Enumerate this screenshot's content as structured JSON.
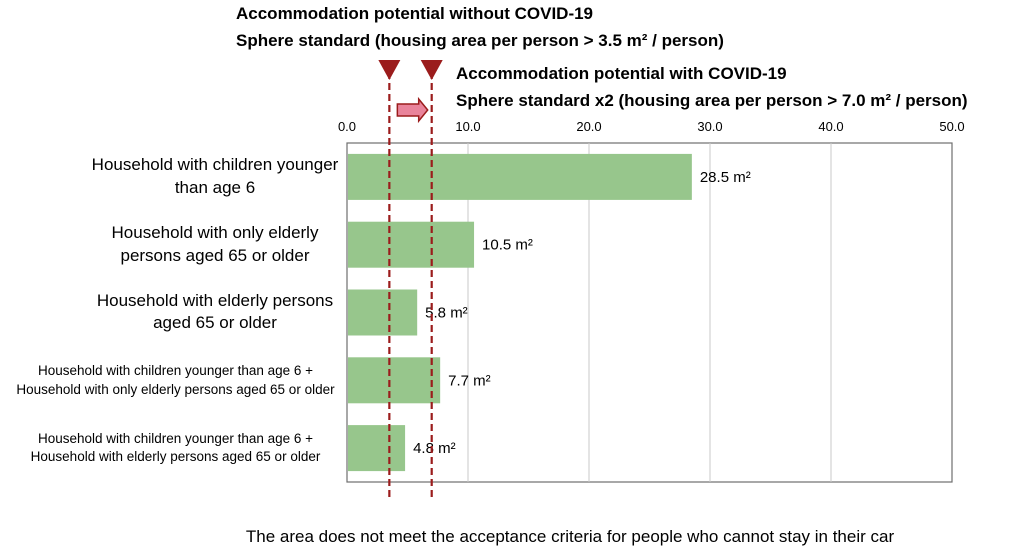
{
  "annotations": {
    "without_line1": "Accommodation potential without COVID-19",
    "without_line2": "Sphere standard (housing area per person > 3.5 m² / person)",
    "with_line1": "Accommodation potential with COVID-19",
    "with_line2": "Sphere standard x2 (housing area per person > 7.0 m² / person)"
  },
  "footer": "The area does not meet the acceptance criteria for people who cannot stay in their car",
  "colors": {
    "bar": "#97c68c",
    "threshold": "#9b1c1c",
    "arrow_fill": "#e9849b",
    "arrow_stroke": "#9b1c1c",
    "grid": "#c8c8c8",
    "frame": "#6e6e6e"
  },
  "chart_data": {
    "type": "bar",
    "orientation": "horizontal",
    "categories": [
      "Household with children younger than age 6",
      "Household with only elderly persons aged 65 or older",
      "Household with elderly persons aged 65 or older",
      "Household with children younger than age 6 + Household with only elderly persons aged 65 or older",
      "Household with children younger than age 6 + Household with elderly persons aged 65 or older"
    ],
    "values": [
      28.5,
      10.5,
      5.8,
      7.7,
      4.8
    ],
    "value_labels": [
      "28.5 m²",
      "10.5 m²",
      "5.8 m²",
      "7.7 m²",
      "4.8 m²"
    ],
    "xlim": [
      0,
      50
    ],
    "x_ticks": [
      0,
      10,
      20,
      30,
      40,
      50
    ],
    "x_tick_labels": [
      "0.0",
      "10.0",
      "20.0",
      "30.0",
      "40.0",
      "50.0"
    ],
    "grid": true,
    "thresholds": [
      3.5,
      7.0
    ]
  }
}
